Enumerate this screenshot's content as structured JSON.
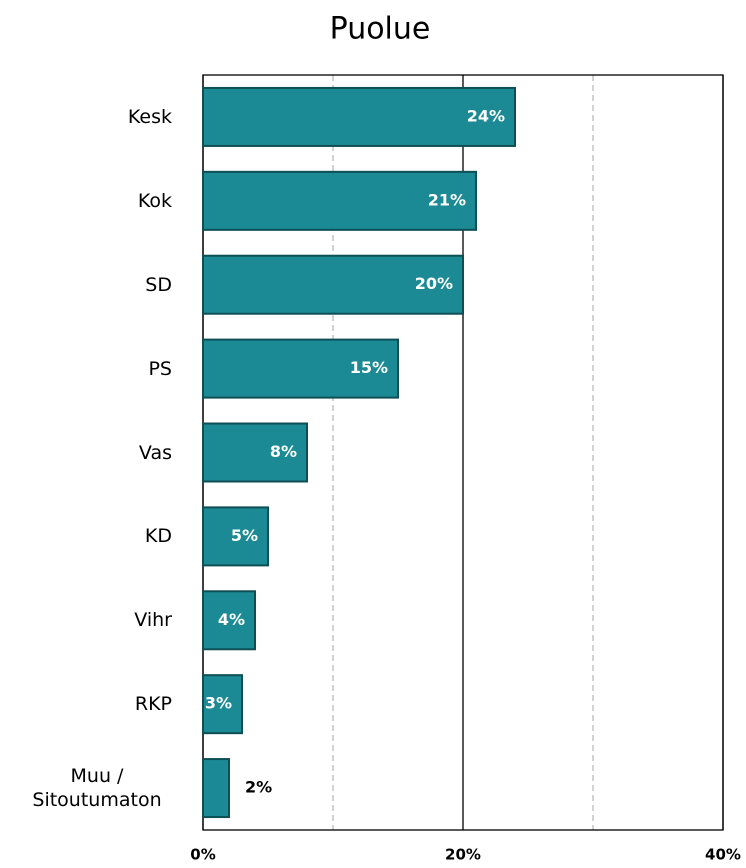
{
  "chart_data": {
    "type": "bar",
    "orientation": "horizontal",
    "title": "Puolue",
    "categories": [
      "Kesk",
      "Kok",
      "SD",
      "PS",
      "Vas",
      "KD",
      "Vihr",
      "RKP",
      "Muu / Sitoutumaton"
    ],
    "values": [
      24,
      21,
      20,
      15,
      8,
      5,
      4,
      3,
      2
    ],
    "value_labels": [
      "24%",
      "21%",
      "20%",
      "15%",
      "8%",
      "5%",
      "4%",
      "3%",
      "2%"
    ],
    "color": "#1b8a94",
    "xlim": [
      0,
      40
    ],
    "xticks": [
      {
        "value": 0,
        "label": "0%"
      },
      {
        "value": 20,
        "label": "20%"
      },
      {
        "value": 40,
        "label": "40%"
      }
    ],
    "minor_grid": [
      10,
      30
    ],
    "grid": true
  }
}
